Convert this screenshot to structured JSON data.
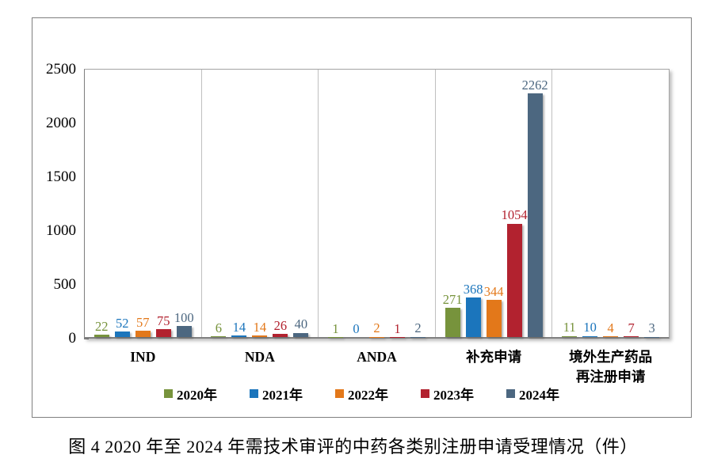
{
  "caption": "图 4  2020 年至 2024 年需技术审评的中药各类别注册申请受理情况（件）",
  "chart_data": {
    "type": "bar",
    "title": "",
    "xlabel": "",
    "ylabel": "",
    "categories": [
      "IND",
      "NDA",
      "ANDA",
      "补充申请",
      "境外生产药品\n再注册申请"
    ],
    "series": [
      {
        "name": "2020年",
        "color": "#77933C",
        "values": [
          22,
          6,
          1,
          271,
          11
        ]
      },
      {
        "name": "2021年",
        "color": "#1B75BC",
        "values": [
          52,
          14,
          0,
          368,
          10
        ]
      },
      {
        "name": "2022年",
        "color": "#E3781A",
        "values": [
          57,
          14,
          2,
          344,
          4
        ]
      },
      {
        "name": "2023年",
        "color": "#B2222F",
        "values": [
          75,
          26,
          1,
          1054,
          7
        ]
      },
      {
        "name": "2024年",
        "color": "#4C6780",
        "values": [
          100,
          40,
          2,
          2262,
          3
        ]
      }
    ],
    "ylim": [
      0,
      2500
    ],
    "yticks": [
      0,
      500,
      1000,
      1500,
      2000,
      2500
    ],
    "grid": "vertical category separators only, no horizontal gridlines",
    "legend_position": "bottom",
    "value_labels": "above each bar, colored to match series"
  }
}
